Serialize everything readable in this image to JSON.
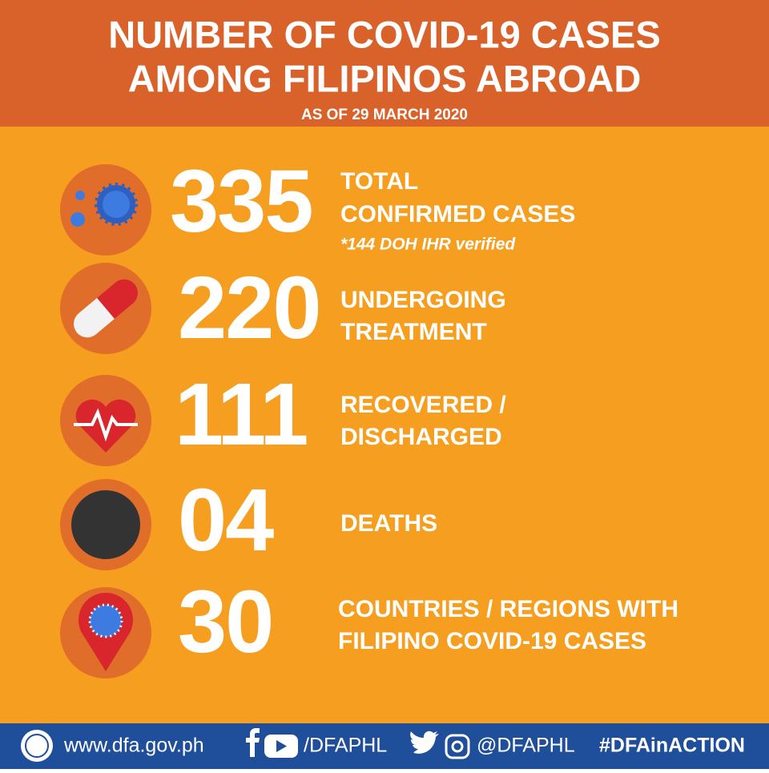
{
  "header": {
    "title": [
      "NUMBER OF COVID-19 CASES",
      "AMONG FILIPINOS ABROAD"
    ],
    "subtitle": "AS OF 29 MARCH 2020"
  },
  "stats": [
    {
      "number": "335",
      "label": [
        "TOTAL",
        "CONFIRMED CASES"
      ],
      "note": "*144 DOH IHR verified"
    },
    {
      "number": "220",
      "label": [
        "UNDERGOING",
        "TREATMENT"
      ]
    },
    {
      "number": "111",
      "label": [
        "RECOVERED /",
        "DISCHARGED"
      ]
    },
    {
      "number": "04",
      "label": [
        "DEATHS"
      ]
    },
    {
      "number": "30",
      "label": [
        "COUNTRIES / REGIONS WITH",
        "FILIPINO COVID-19 CASES"
      ]
    }
  ],
  "footer": {
    "website": "www.dfa.gov.ph",
    "handle_fb_yt": "/DFAPHL",
    "handle_tw_ig": "@DFAPHL",
    "hashtag": "#DFAinACTION"
  }
}
